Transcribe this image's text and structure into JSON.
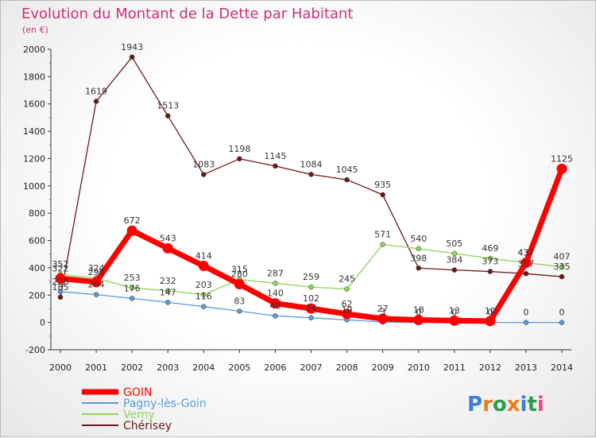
{
  "chart_data": {
    "type": "line",
    "title": "Evolution du Montant de la Dette par Habitant",
    "subtitle": "(en €)",
    "x": [
      "2000",
      "2001",
      "2002",
      "2003",
      "2004",
      "2005",
      "2006",
      "2007",
      "2008",
      "2009",
      "2010",
      "2011",
      "2012",
      "2013",
      "2014"
    ],
    "ylim": [
      -200,
      2000
    ],
    "yticks": [
      -200,
      0,
      200,
      400,
      600,
      800,
      1000,
      1200,
      1400,
      1600,
      1800,
      2000
    ],
    "grid": false,
    "legend_position": "bottom-left",
    "series": [
      {
        "name": "GOIN",
        "color": "#ff0000",
        "values": [
          322,
          296,
          672,
          543,
          414,
          280,
          140,
          102,
          62,
          27,
          18,
          13,
          10,
          437,
          1125
        ]
      },
      {
        "name": "Pagny-lès-Goin",
        "color": "#5a9bd4",
        "values": [
          226,
          204,
          176,
          147,
          116,
          83,
          48,
          34,
          19,
          3,
          0,
          0,
          0,
          0,
          0
        ]
      },
      {
        "name": "Verny",
        "color": "#8ed45a",
        "values": [
          352,
          324,
          253,
          232,
          203,
          315,
          287,
          259,
          245,
          571,
          540,
          505,
          469,
          437,
          407
        ]
      },
      {
        "name": "Chérisey",
        "color": "#6b1a1a",
        "values": [
          185,
          1619,
          1943,
          1513,
          1083,
          1198,
          1145,
          1084,
          1045,
          935,
          398,
          384,
          373,
          357,
          335
        ]
      }
    ]
  },
  "logo": {
    "text": "Proxiti"
  }
}
